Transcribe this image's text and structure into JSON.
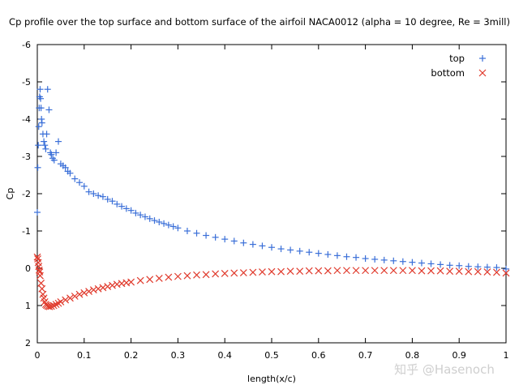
{
  "chart_data": {
    "type": "scatter",
    "title": "Cp profile over the top surface and bottom surface of the airfoil NACA0012 (alpha = 10 degree, Re = 3mill)",
    "xlabel": "length(x/c)",
    "ylabel": "Cp",
    "xlim": [
      0,
      1
    ],
    "ylim": [
      2,
      -6
    ],
    "y_inverted": true,
    "x_ticks": [
      "0",
      "0.1",
      "0.2",
      "0.3",
      "0.4",
      "0.5",
      "0.6",
      "0.7",
      "0.8",
      "0.9",
      "1"
    ],
    "y_ticks": [
      "-6",
      "-5",
      "-4",
      "-3",
      "-2",
      "-1",
      "0",
      "1",
      "2"
    ],
    "grid": false,
    "legend_position": "top-right",
    "series": [
      {
        "name": "top",
        "marker": "plus",
        "color": "#3a6fd8",
        "x": [
          0.0,
          0.001,
          0.002,
          0.003,
          0.004,
          0.005,
          0.006,
          0.007,
          0.008,
          0.009,
          0.01,
          0.012,
          0.014,
          0.016,
          0.018,
          0.02,
          0.022,
          0.025,
          0.028,
          0.03,
          0.033,
          0.036,
          0.04,
          0.045,
          0.05,
          0.055,
          0.06,
          0.065,
          0.07,
          0.08,
          0.09,
          0.1,
          0.11,
          0.12,
          0.13,
          0.14,
          0.15,
          0.16,
          0.17,
          0.18,
          0.19,
          0.2,
          0.21,
          0.22,
          0.23,
          0.24,
          0.25,
          0.26,
          0.27,
          0.28,
          0.29,
          0.3,
          0.32,
          0.34,
          0.36,
          0.38,
          0.4,
          0.42,
          0.44,
          0.46,
          0.48,
          0.5,
          0.52,
          0.54,
          0.56,
          0.58,
          0.6,
          0.62,
          0.64,
          0.66,
          0.68,
          0.7,
          0.72,
          0.74,
          0.76,
          0.78,
          0.8,
          0.82,
          0.84,
          0.86,
          0.88,
          0.9,
          0.92,
          0.94,
          0.96,
          0.98,
          1.0
        ],
        "y": [
          -1.5,
          -2.7,
          -3.3,
          -3.8,
          -4.3,
          -4.6,
          -4.8,
          -4.55,
          -4.3,
          -4.0,
          -3.9,
          -3.6,
          -3.4,
          -3.3,
          -3.2,
          -3.6,
          -4.8,
          -4.25,
          -3.1,
          -3.05,
          -2.95,
          -2.9,
          -3.1,
          -3.4,
          -2.8,
          -2.75,
          -2.7,
          -2.6,
          -2.55,
          -2.4,
          -2.3,
          -2.2,
          -2.05,
          -2.0,
          -1.95,
          -1.92,
          -1.85,
          -1.8,
          -1.72,
          -1.66,
          -1.6,
          -1.55,
          -1.48,
          -1.43,
          -1.38,
          -1.33,
          -1.28,
          -1.24,
          -1.2,
          -1.16,
          -1.12,
          -1.08,
          -1.0,
          -0.94,
          -0.88,
          -0.83,
          -0.78,
          -0.73,
          -0.68,
          -0.64,
          -0.6,
          -0.56,
          -0.52,
          -0.49,
          -0.46,
          -0.43,
          -0.4,
          -0.37,
          -0.34,
          -0.31,
          -0.29,
          -0.26,
          -0.24,
          -0.22,
          -0.2,
          -0.18,
          -0.16,
          -0.14,
          -0.12,
          -0.1,
          -0.08,
          -0.07,
          -0.05,
          -0.04,
          -0.03,
          -0.02,
          0.02
        ]
      },
      {
        "name": "bottom",
        "marker": "cross",
        "color": "#e03a2c",
        "x": [
          0.0,
          0.001,
          0.002,
          0.003,
          0.004,
          0.005,
          0.006,
          0.008,
          0.01,
          0.012,
          0.014,
          0.016,
          0.018,
          0.02,
          0.023,
          0.026,
          0.03,
          0.035,
          0.04,
          0.045,
          0.05,
          0.06,
          0.07,
          0.08,
          0.09,
          0.1,
          0.11,
          0.12,
          0.13,
          0.14,
          0.15,
          0.16,
          0.17,
          0.18,
          0.19,
          0.2,
          0.22,
          0.24,
          0.26,
          0.28,
          0.3,
          0.32,
          0.34,
          0.36,
          0.38,
          0.4,
          0.42,
          0.44,
          0.46,
          0.48,
          0.5,
          0.52,
          0.54,
          0.56,
          0.58,
          0.6,
          0.62,
          0.64,
          0.66,
          0.68,
          0.7,
          0.72,
          0.74,
          0.76,
          0.78,
          0.8,
          0.82,
          0.84,
          0.86,
          0.88,
          0.9,
          0.92,
          0.94,
          0.96,
          0.98,
          1.0
        ],
        "y": [
          -0.3,
          -0.25,
          -0.15,
          -0.05,
          0.05,
          0.1,
          0.2,
          0.4,
          0.55,
          0.7,
          0.8,
          0.9,
          0.97,
          1.0,
          1.02,
          1.03,
          1.02,
          1.0,
          0.97,
          0.94,
          0.9,
          0.85,
          0.8,
          0.75,
          0.7,
          0.66,
          0.62,
          0.58,
          0.55,
          0.52,
          0.49,
          0.46,
          0.43,
          0.41,
          0.39,
          0.37,
          0.33,
          0.3,
          0.27,
          0.24,
          0.22,
          0.2,
          0.18,
          0.17,
          0.15,
          0.14,
          0.13,
          0.12,
          0.11,
          0.1,
          0.09,
          0.09,
          0.08,
          0.08,
          0.07,
          0.07,
          0.07,
          0.06,
          0.06,
          0.06,
          0.06,
          0.06,
          0.06,
          0.06,
          0.06,
          0.06,
          0.07,
          0.07,
          0.07,
          0.08,
          0.08,
          0.09,
          0.09,
          0.1,
          0.11,
          0.13
        ]
      }
    ]
  },
  "watermark": "知乎 @Hasenoch"
}
